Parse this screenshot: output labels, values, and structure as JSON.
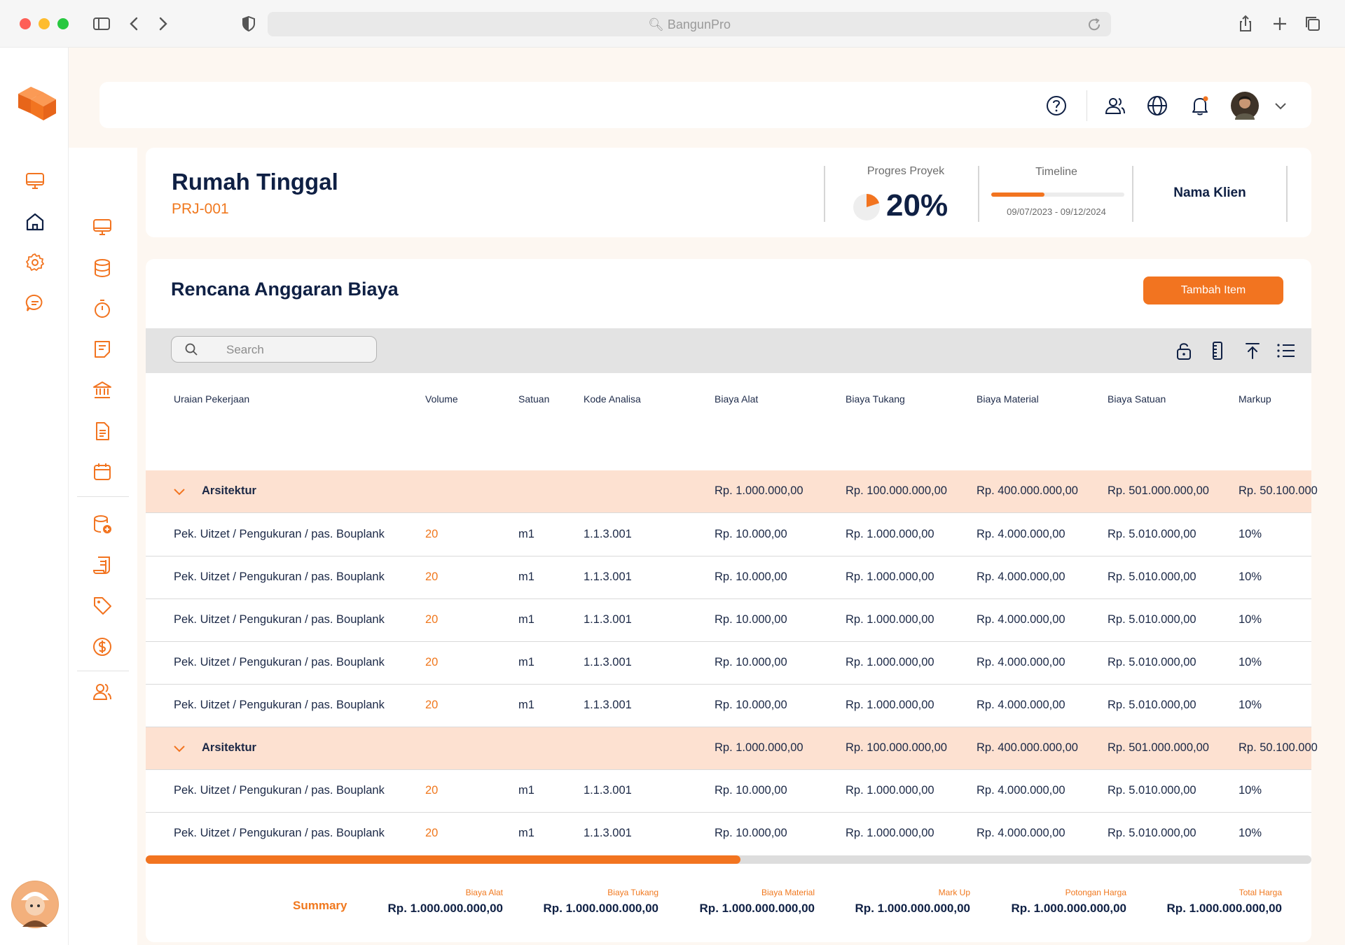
{
  "browser": {
    "url": "BangunPro"
  },
  "topbar": {
    "icons": [
      "help-icon",
      "users-icon",
      "globe-icon",
      "bell-icon",
      "avatar",
      "chevron-down-icon"
    ]
  },
  "project": {
    "title": "Rumah Tinggal",
    "code": "PRJ-001",
    "progress_label": "Progres Proyek",
    "progress_value": "20%",
    "progress_fraction": 0.2,
    "timeline_label": "Timeline",
    "timeline_range": "09/07/2023 - 09/12/2024",
    "timeline_fraction": 0.4,
    "client": "Nama Klien"
  },
  "rab": {
    "title": "Rencana Anggaran Biaya",
    "add_button": "Tambah Item",
    "search_placeholder": "Search"
  },
  "table": {
    "headers": [
      "Uraian Pekerjaan",
      "Volume",
      "Satuan",
      "Kode Analisa",
      "Biaya Alat",
      "Biaya Tukang",
      "Biaya Material",
      "Biaya Satuan",
      "Markup"
    ],
    "groups": [
      {
        "name": "Arsitektur",
        "biaya_alat": "Rp. 1.000.000,00",
        "biaya_tukang": "Rp. 100.000.000,00",
        "biaya_material": "Rp. 400.000.000,00",
        "biaya_satuan": "Rp. 501.000.000,00",
        "markup": "Rp. 50.100.000",
        "rows": [
          {
            "uraian": "Pek. Uitzet / Pengukuran / pas. Bouplank",
            "volume": "20",
            "satuan": "m1",
            "kode": "1.1.3.001",
            "alat": "Rp. 10.000,00",
            "tukang": "Rp. 1.000.000,00",
            "material": "Rp. 4.000.000,00",
            "satuan_biaya": "Rp. 5.010.000,00",
            "markup": "10%"
          },
          {
            "uraian": "Pek. Uitzet / Pengukuran / pas. Bouplank",
            "volume": "20",
            "satuan": "m1",
            "kode": "1.1.3.001",
            "alat": "Rp. 10.000,00",
            "tukang": "Rp. 1.000.000,00",
            "material": "Rp. 4.000.000,00",
            "satuan_biaya": "Rp. 5.010.000,00",
            "markup": "10%"
          },
          {
            "uraian": "Pek. Uitzet / Pengukuran / pas. Bouplank",
            "volume": "20",
            "satuan": "m1",
            "kode": "1.1.3.001",
            "alat": "Rp. 10.000,00",
            "tukang": "Rp. 1.000.000,00",
            "material": "Rp. 4.000.000,00",
            "satuan_biaya": "Rp. 5.010.000,00",
            "markup": "10%"
          },
          {
            "uraian": "Pek. Uitzet / Pengukuran / pas. Bouplank",
            "volume": "20",
            "satuan": "m1",
            "kode": "1.1.3.001",
            "alat": "Rp. 10.000,00",
            "tukang": "Rp. 1.000.000,00",
            "material": "Rp. 4.000.000,00",
            "satuan_biaya": "Rp. 5.010.000,00",
            "markup": "10%"
          },
          {
            "uraian": "Pek. Uitzet / Pengukuran / pas. Bouplank",
            "volume": "20",
            "satuan": "m1",
            "kode": "1.1.3.001",
            "alat": "Rp. 10.000,00",
            "tukang": "Rp. 1.000.000,00",
            "material": "Rp. 4.000.000,00",
            "satuan_biaya": "Rp. 5.010.000,00",
            "markup": "10%"
          }
        ]
      },
      {
        "name": "Arsitektur",
        "biaya_alat": "Rp. 1.000.000,00",
        "biaya_tukang": "Rp. 100.000.000,00",
        "biaya_material": "Rp. 400.000.000,00",
        "biaya_satuan": "Rp. 501.000.000,00",
        "markup": "Rp. 50.100.000",
        "rows": [
          {
            "uraian": "Pek. Uitzet / Pengukuran / pas. Bouplank",
            "volume": "20",
            "satuan": "m1",
            "kode": "1.1.3.001",
            "alat": "Rp. 10.000,00",
            "tukang": "Rp. 1.000.000,00",
            "material": "Rp. 4.000.000,00",
            "satuan_biaya": "Rp. 5.010.000,00",
            "markup": "10%"
          },
          {
            "uraian": "Pek. Uitzet / Pengukuran / pas. Bouplank",
            "volume": "20",
            "satuan": "m1",
            "kode": "1.1.3.001",
            "alat": "Rp. 10.000,00",
            "tukang": "Rp. 1.000.000,00",
            "material": "Rp. 4.000.000,00",
            "satuan_biaya": "Rp. 5.010.000,00",
            "markup": "10%"
          }
        ]
      }
    ],
    "scroll_fraction": 0.51
  },
  "summary": {
    "label": "Summary",
    "items": [
      {
        "label": "Biaya Alat",
        "value": "Rp. 1.000.000.000,00"
      },
      {
        "label": "Biaya Tukang",
        "value": "Rp. 1.000.000.000,00"
      },
      {
        "label": "Biaya Material",
        "value": "Rp. 1.000.000.000,00"
      },
      {
        "label": "Mark Up",
        "value": "Rp. 1.000.000.000,00"
      },
      {
        "label": "Potongan Harga",
        "value": "Rp. 1.000.000.000,00"
      },
      {
        "label": "Total Harga",
        "value": "Rp. 1.000.000.000,00"
      }
    ]
  },
  "colors": {
    "accent": "#f27420",
    "navy": "#0f2044",
    "group_row": "#fde1d1",
    "page_bg": "#fdf7f1"
  }
}
